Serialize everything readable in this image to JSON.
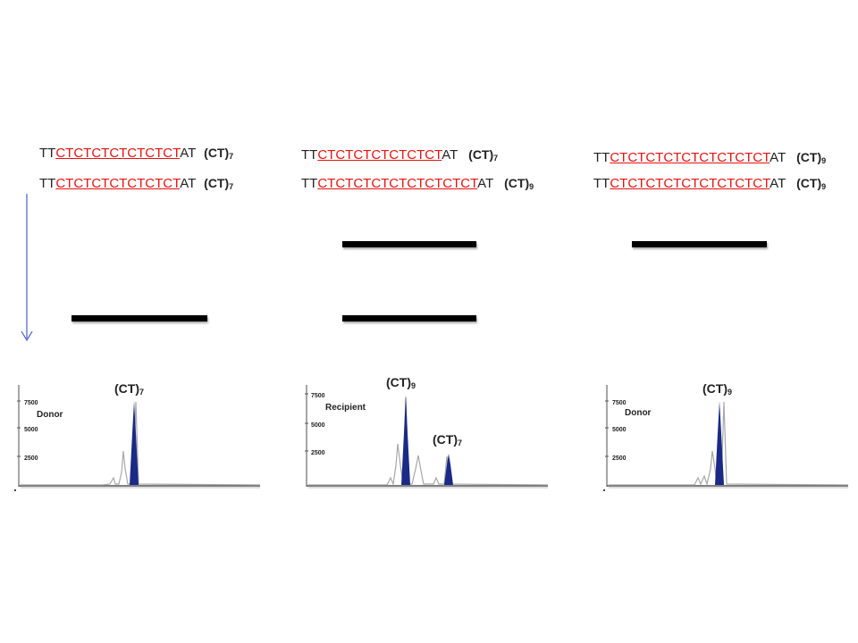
{
  "columns": [
    {
      "rows": [
        {
          "prefix": "TT",
          "repeat": "CTCTCTCTCTCTCT",
          "suffix": "AT",
          "label_base": "(CT)",
          "label_sub": "7"
        },
        {
          "prefix": "TT",
          "repeat": "CTCTCTCTCTCTCT",
          "suffix": "AT",
          "label_base": "(CT)",
          "label_sub": "7"
        }
      ],
      "panel": {
        "name": "Donor",
        "y_ticks": [
          "7500",
          "5000",
          "2500"
        ],
        "peak_labels": [
          {
            "base": "(CT)",
            "sub": "7"
          }
        ]
      }
    },
    {
      "rows": [
        {
          "prefix": "TT",
          "repeat": "CTCTCTCTCTCTCT",
          "suffix": "AT",
          "label_base": "(CT)",
          "label_sub": "7"
        },
        {
          "prefix": "TT",
          "repeat": "CTCTCTCTCTCTCTCTCT",
          "suffix": "AT",
          "label_base": "(CT)",
          "label_sub": "9"
        }
      ],
      "panel": {
        "name": "Recipient",
        "y_ticks": [
          "7500",
          "5000",
          "2500"
        ],
        "peak_labels": [
          {
            "base": "(CT)",
            "sub": "9"
          },
          {
            "base": "(CT)",
            "sub": "7"
          }
        ]
      }
    },
    {
      "rows": [
        {
          "prefix": "TT",
          "repeat": "CTCTCTCTCTCTCTCTCT",
          "suffix": "AT",
          "label_base": "(CT)",
          "label_sub": "9"
        },
        {
          "prefix": "TT",
          "repeat": "CTCTCTCTCTCTCTCTCT",
          "suffix": "AT",
          "label_base": "(CT)",
          "label_sub": "9"
        }
      ],
      "panel": {
        "name": "Donor",
        "y_ticks": [
          "7500",
          "5000",
          "2500"
        ],
        "peak_labels": [
          {
            "base": "(CT)",
            "sub": "9"
          }
        ]
      }
    }
  ],
  "colors": {
    "repeat": "#e3140f",
    "peak_fill": "#1a2a86",
    "arrow": "#4a5cc8",
    "band": "#000000"
  }
}
